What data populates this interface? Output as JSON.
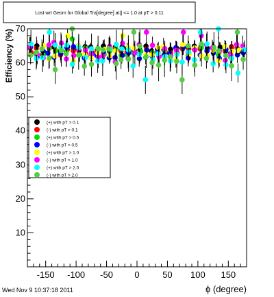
{
  "footer": "Wed Nov  9 10:37:18 2011",
  "chart_data": {
    "type": "scatter",
    "title": "Lost wrt Geom for Global Tra[degree] at|| <= 1.0 at pT > 0.11",
    "xlabel": "ϕ (degree)",
    "ylabel": "Efficiency (%)",
    "xlim": [
      -180,
      180
    ],
    "ylim": [
      0,
      70
    ],
    "x_ticks": [
      -150,
      -100,
      -50,
      0,
      50,
      100,
      150
    ],
    "y_ticks": [
      10,
      20,
      30,
      40,
      50,
      60,
      70
    ],
    "grid": false,
    "legend_position": "left-middle",
    "colors": {
      "black": "#000000",
      "red": "#ff0000",
      "green": "#00dd00",
      "blue": "#0000ff",
      "yellow": "#ffff00",
      "magenta": "#ff00ff",
      "cyan": "#00ffff",
      "lightgreen": "#55cc44"
    },
    "series": [
      {
        "name": "(+) with pT > 0.1",
        "color": "black",
        "center": 64,
        "spread": 1.0,
        "err": 1.5
      },
      {
        "name": "(-) with pT > 0.1",
        "color": "red",
        "center": 63.5,
        "spread": 1.2,
        "err": 1.6
      },
      {
        "name": "(+) with pT > 0.5",
        "color": "green",
        "center": 63,
        "spread": 1.5,
        "err": 1.8
      },
      {
        "name": "(-) with pT > 0.5",
        "color": "blue",
        "center": 63,
        "spread": 1.8,
        "err": 2.0
      },
      {
        "name": "(+) with pT > 1.0",
        "color": "yellow",
        "center": 63,
        "spread": 2.5,
        "err": 2.5
      },
      {
        "name": "(-) with pT > 1.0",
        "color": "magenta",
        "center": 63,
        "spread": 2.8,
        "err": 2.8
      },
      {
        "name": "(+) with pT > 2.0",
        "color": "cyan",
        "center": 62.5,
        "spread": 3.5,
        "err": 3.5
      },
      {
        "name": "(-) with pT > 2.0",
        "color": "lightgreen",
        "center": 62.5,
        "spread": 3.5,
        "err": 3.8
      }
    ],
    "phi_bins": [
      -175,
      -165,
      -155,
      -145,
      -135,
      -125,
      -115,
      -105,
      -95,
      -85,
      -75,
      -65,
      -55,
      -45,
      -35,
      -25,
      -15,
      -5,
      5,
      15,
      25,
      35,
      45,
      55,
      65,
      75,
      85,
      95,
      105,
      115,
      125,
      135,
      145,
      155,
      165,
      175
    ],
    "highlights": [
      {
        "series": 6,
        "x": -145,
        "y": 69
      },
      {
        "series": 5,
        "x": -135,
        "y": 66
      },
      {
        "series": 4,
        "x": -115,
        "y": 68
      },
      {
        "series": 2,
        "x": -105,
        "y": 67
      },
      {
        "series": 3,
        "x": -95,
        "y": 65
      },
      {
        "series": 7,
        "x": -105,
        "y": 70
      },
      {
        "series": 4,
        "x": -25,
        "y": 68
      },
      {
        "series": 7,
        "x": -5,
        "y": 69
      },
      {
        "series": 5,
        "x": 15,
        "y": 69
      },
      {
        "series": 6,
        "x": 15,
        "y": 55
      },
      {
        "series": 7,
        "x": 75,
        "y": 55
      },
      {
        "series": 5,
        "x": 75,
        "y": 69
      },
      {
        "series": 6,
        "x": 105,
        "y": 69
      },
      {
        "series": 6,
        "x": 135,
        "y": 70
      },
      {
        "series": 7,
        "x": 165,
        "y": 69
      },
      {
        "series": 6,
        "x": 165,
        "y": 57
      },
      {
        "series": 7,
        "x": -135,
        "y": 58
      },
      {
        "series": 5,
        "x": 105,
        "y": 68
      }
    ]
  }
}
